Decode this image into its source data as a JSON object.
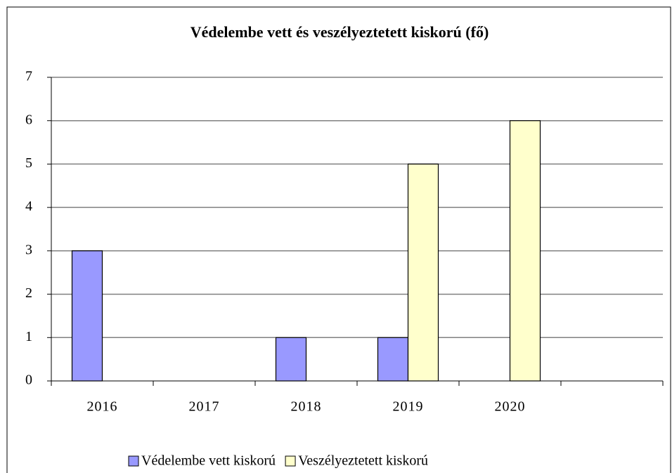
{
  "chart_data": {
    "type": "bar",
    "title": "Védelembe vett és veszélyeztetett kiskorú (fő)",
    "categories": [
      "2016",
      "2017",
      "2018",
      "2019",
      "2020",
      null
    ],
    "series": [
      {
        "name": "Védelembe vett kiskorú",
        "color": "#9999ff",
        "values": [
          3,
          0,
          1,
          1,
          0,
          null
        ]
      },
      {
        "name": "Veszélyeztetett kiskorú",
        "color": "#ffffcc",
        "values": [
          0,
          0,
          0,
          5,
          6,
          null
        ]
      }
    ],
    "ylim": [
      0,
      7
    ],
    "yticks": [
      0,
      1,
      2,
      3,
      4,
      5,
      6,
      7
    ],
    "grid": true,
    "legend": "bottom"
  }
}
